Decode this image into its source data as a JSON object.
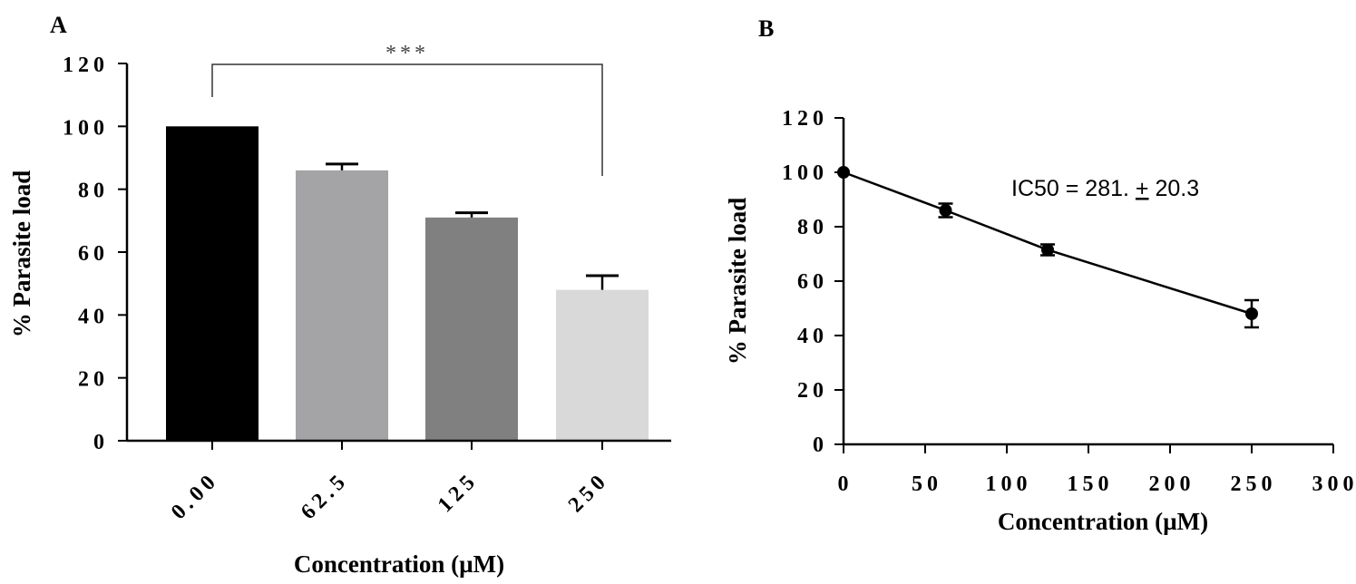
{
  "chart_data": [
    {
      "panel": "A",
      "type": "bar",
      "categories": [
        "0.00",
        "62.5",
        "125",
        "250"
      ],
      "values": [
        100,
        86,
        71,
        48
      ],
      "errors": [
        0,
        2,
        1.5,
        4.5
      ],
      "colors": [
        "#000000",
        "#a4a4a7",
        "#808080",
        "#d9d9d9"
      ],
      "xlabel": "Concentration (µM)",
      "ylabel": "% Parasite load",
      "ylim": [
        0,
        120
      ],
      "yticks": [
        "0",
        "20",
        "40",
        "60",
        "80",
        "100",
        "120"
      ],
      "significance": {
        "from": "0.00",
        "to": "250",
        "label": "***"
      }
    },
    {
      "panel": "B",
      "type": "line",
      "x": [
        0,
        62.5,
        125,
        250
      ],
      "y": [
        100,
        86,
        71.5,
        48
      ],
      "errors": [
        0,
        2.5,
        2,
        5
      ],
      "xlabel": "Concentration (µM)",
      "ylabel": "% Parasite load",
      "xlim": [
        0,
        300
      ],
      "ylim": [
        0,
        120
      ],
      "xticks": [
        "0",
        "50",
        "100",
        "150",
        "200",
        "250",
        "300"
      ],
      "yticks": [
        "0",
        "20",
        "40",
        "60",
        "80",
        "100",
        "120"
      ],
      "annotation": {
        "prefix": "IC50 = 281. ",
        "pm": "+",
        "suffix": " 20.3"
      }
    }
  ]
}
